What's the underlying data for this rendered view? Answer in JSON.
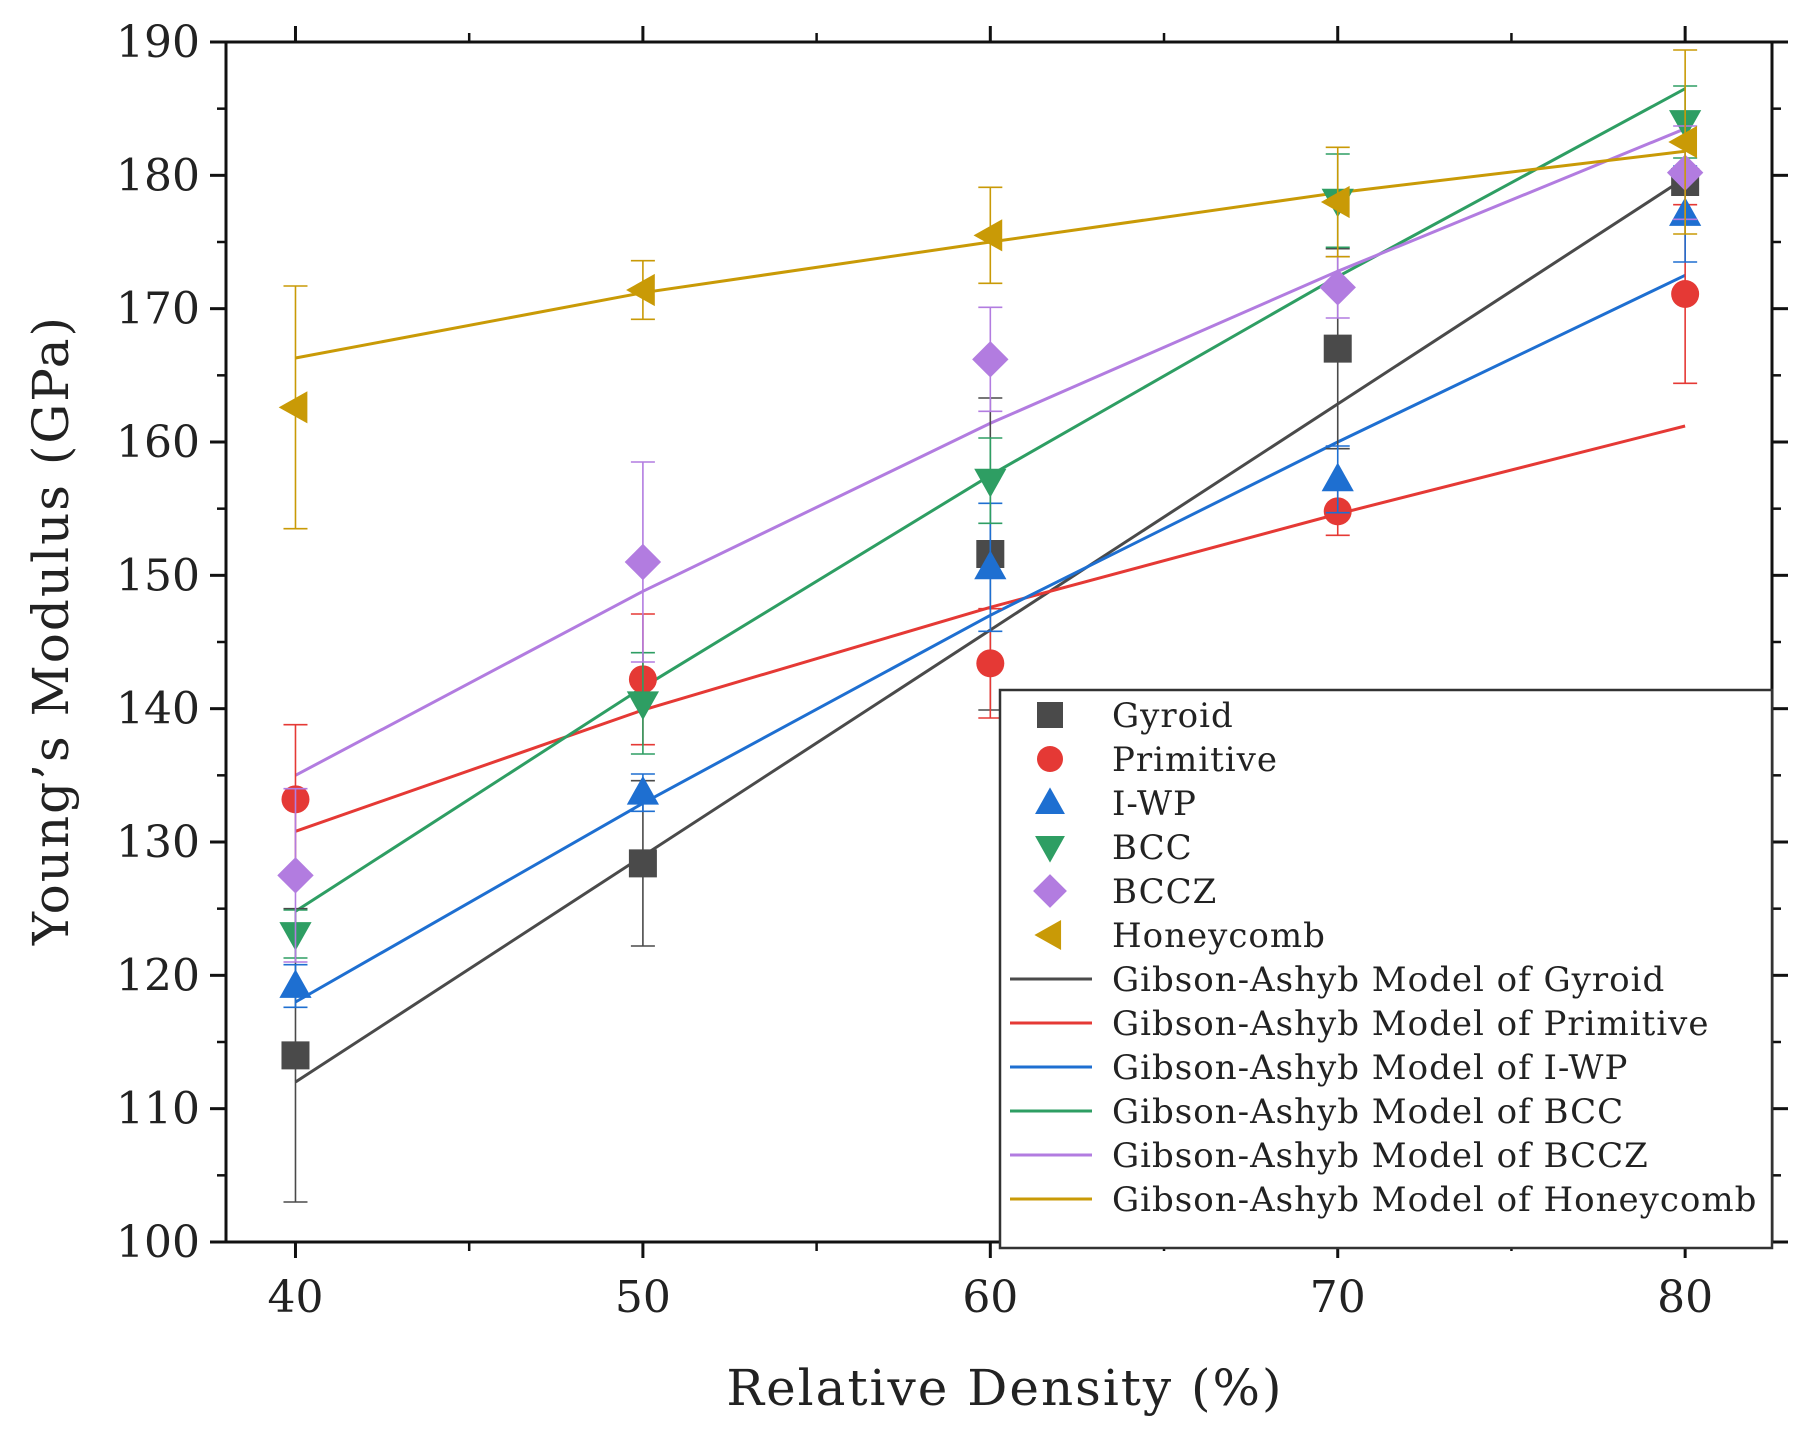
{
  "chart_data": {
    "type": "scatter",
    "title": "",
    "xlabel": "Relative Density (%)",
    "ylabel": "Young’s Modulus (GPa)",
    "xlim": [
      38,
      82.5
    ],
    "ylim": [
      100,
      190
    ],
    "xticks": [
      40,
      50,
      60,
      70,
      80
    ],
    "xtick_labels": [
      "40",
      "50",
      "60",
      "70",
      "80"
    ],
    "yticks": [
      100,
      110,
      120,
      130,
      140,
      150,
      160,
      170,
      180,
      190
    ],
    "ytick_labels": [
      "100",
      "110",
      "120",
      "130",
      "140",
      "150",
      "160",
      "170",
      "180",
      "190"
    ],
    "grid": false,
    "legend_position": "bottom-right",
    "x": [
      40,
      50,
      60,
      70,
      80
    ],
    "series": [
      {
        "name": "Gyroid",
        "marker": "square",
        "color": "#4a4a4a",
        "values": [
          114.0,
          128.4,
          151.6,
          167.0,
          179.5
        ],
        "errors": [
          11.0,
          6.2,
          11.7,
          7.5,
          0.8
        ]
      },
      {
        "name": "Primitive",
        "marker": "circle",
        "color": "#e53935",
        "values": [
          133.2,
          142.2,
          143.4,
          154.8,
          171.1
        ],
        "errors": [
          5.6,
          4.9,
          4.1,
          1.8,
          6.7
        ]
      },
      {
        "name": "I-WP",
        "marker": "triangle-up",
        "color": "#1e6fd1",
        "values": [
          119.2,
          133.7,
          150.6,
          157.2,
          177.1
        ],
        "errors": [
          1.6,
          1.4,
          4.8,
          2.5,
          3.6
        ]
      },
      {
        "name": "BCC",
        "marker": "triangle-down",
        "color": "#2e9e63",
        "values": [
          123.1,
          140.4,
          157.1,
          178.1,
          184.0
        ],
        "errors": [
          1.8,
          3.8,
          3.2,
          3.5,
          2.7
        ]
      },
      {
        "name": "BCCZ",
        "marker": "diamond",
        "color": "#b27ce0",
        "values": [
          127.5,
          151.0,
          166.2,
          171.6,
          180.2
        ],
        "errors": [
          6.5,
          7.5,
          3.9,
          2.3,
          3.5
        ]
      },
      {
        "name": "Honeycomb",
        "marker": "triangle-left",
        "color": "#c99a06",
        "values": [
          162.6,
          171.4,
          175.5,
          178.0,
          182.5
        ],
        "errors": [
          9.1,
          2.2,
          3.6,
          4.1,
          6.9
        ]
      }
    ],
    "model_lines": [
      {
        "name": "Gibson-Ashyb Model of Gyroid",
        "color": "#4a4a4a",
        "x": [
          40,
          80
        ],
        "y": [
          112.0,
          179.8
        ]
      },
      {
        "name": "Gibson-Ashyb Model of Primitive",
        "color": "#e53935",
        "x": [
          40,
          50,
          60,
          70,
          80
        ],
        "y": [
          130.8,
          139.9,
          147.6,
          154.6,
          161.2
        ]
      },
      {
        "name": "Gibson-Ashyb Model of I-WP",
        "color": "#1e6fd1",
        "x": [
          40,
          50,
          60,
          70,
          80
        ],
        "y": [
          118.0,
          132.9,
          147.0,
          160.0,
          172.5
        ]
      },
      {
        "name": "Gibson-Ashyb Model of BCC",
        "color": "#2e9e63",
        "x": [
          40,
          50,
          60,
          70,
          80
        ],
        "y": [
          124.8,
          141.6,
          157.5,
          172.4,
          186.5
        ]
      },
      {
        "name": "Gibson-Ashyb Model of BCCZ",
        "color": "#b27ce0",
        "x": [
          40,
          50,
          60,
          70,
          80
        ],
        "y": [
          135.0,
          148.8,
          161.4,
          172.8,
          183.5
        ]
      },
      {
        "name": "Gibson-Ashyb Model of Honeycomb",
        "color": "#c99a06",
        "x": [
          40,
          50,
          60,
          70,
          80
        ],
        "y": [
          166.3,
          171.2,
          175.0,
          178.7,
          181.8
        ]
      }
    ]
  }
}
